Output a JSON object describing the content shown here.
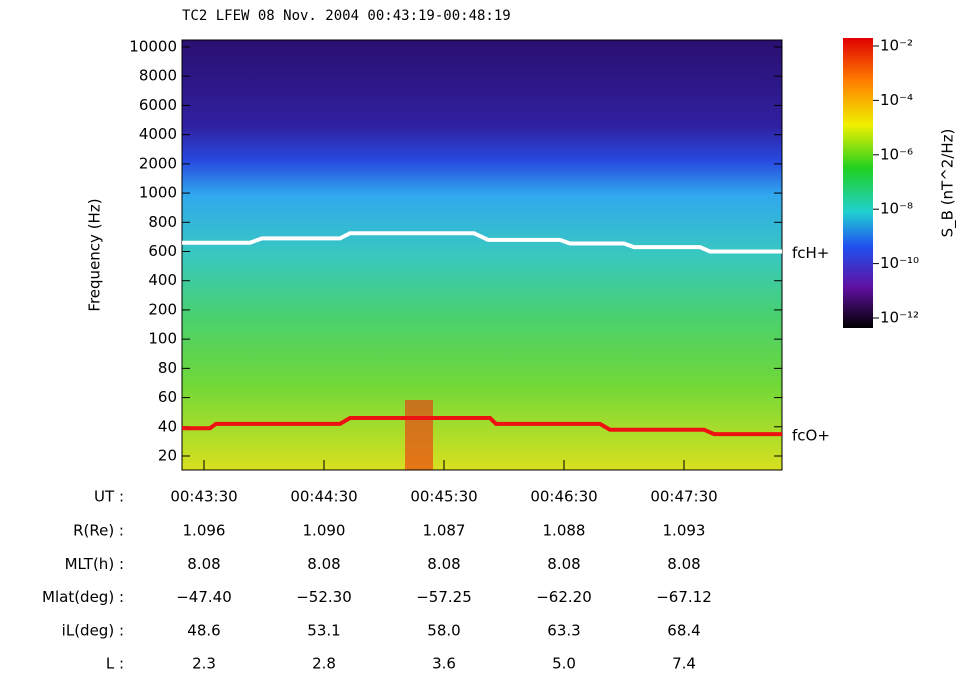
{
  "chart_data": {
    "type": "spectrogram",
    "title": "TC2 LFEW 08 Nov. 2004 00:43:19-00:48:19",
    "ylabel": "Frequency (Hz)",
    "xlim": [
      "00:43:19",
      "00:48:19"
    ],
    "xticks": [
      "00:43:30",
      "00:44:30",
      "00:45:30",
      "00:46:30",
      "00:47:30"
    ],
    "xtick_row_label": "UT :",
    "yticks": [
      10000,
      8000,
      6000,
      4000,
      2000,
      1000,
      800,
      600,
      400,
      200,
      100,
      80,
      60,
      40,
      20
    ],
    "series": [
      {
        "name": "fcH+",
        "color": "#ffffff",
        "x": [
          "00:43:19",
          "00:43:53",
          "00:43:59",
          "00:44:38",
          "00:44:43",
          "00:45:45",
          "00:45:52",
          "00:46:28",
          "00:46:33",
          "00:47:00",
          "00:47:05",
          "00:47:38",
          "00:47:43",
          "00:48:19"
        ],
        "values": [
          660,
          660,
          690,
          690,
          725,
          725,
          680,
          680,
          655,
          655,
          630,
          630,
          600,
          600
        ]
      },
      {
        "name": "fcO+",
        "color": "#ee1111",
        "x": [
          "00:43:19",
          "00:43:33",
          "00:43:36",
          "00:44:38",
          "00:44:43",
          "00:45:53",
          "00:45:56",
          "00:46:48",
          "00:46:53",
          "00:47:40",
          "00:47:45",
          "00:48:19"
        ],
        "values": [
          39,
          39,
          42,
          42,
          46,
          46,
          42,
          42,
          38,
          38,
          35,
          35
        ]
      }
    ],
    "colorbar": {
      "label": "S_B (nT^2/Hz)",
      "log": true,
      "clim": [
        1e-12,
        0.01
      ],
      "ticks": [
        {
          "value": 0.01,
          "label": "10⁻²"
        },
        {
          "value": 0.0001,
          "label": "10⁻⁴"
        },
        {
          "value": 1e-06,
          "label": "10⁻⁶"
        },
        {
          "value": 1e-08,
          "label": "10⁻⁸"
        },
        {
          "value": 1e-10,
          "label": "10⁻¹⁰"
        },
        {
          "value": 1e-12,
          "label": "10⁻¹²"
        }
      ]
    },
    "ephemeris": [
      {
        "label": "R(Re) :",
        "values": [
          "1.096",
          "1.090",
          "1.087",
          "1.088",
          "1.093"
        ]
      },
      {
        "label": "MLT(h) :",
        "values": [
          "8.08",
          "8.08",
          "8.08",
          "8.08",
          "8.08"
        ]
      },
      {
        "label": "Mlat(deg) :",
        "values": [
          "−47.40",
          "−52.30",
          "−57.25",
          "−62.20",
          "−67.12"
        ]
      },
      {
        "label": "iL(deg) :",
        "values": [
          "48.6",
          "53.1",
          "58.0",
          "63.3",
          "68.4"
        ]
      },
      {
        "label": "L :",
        "values": [
          "2.3",
          "2.8",
          "3.6",
          "5.0",
          "7.4"
        ]
      }
    ]
  }
}
